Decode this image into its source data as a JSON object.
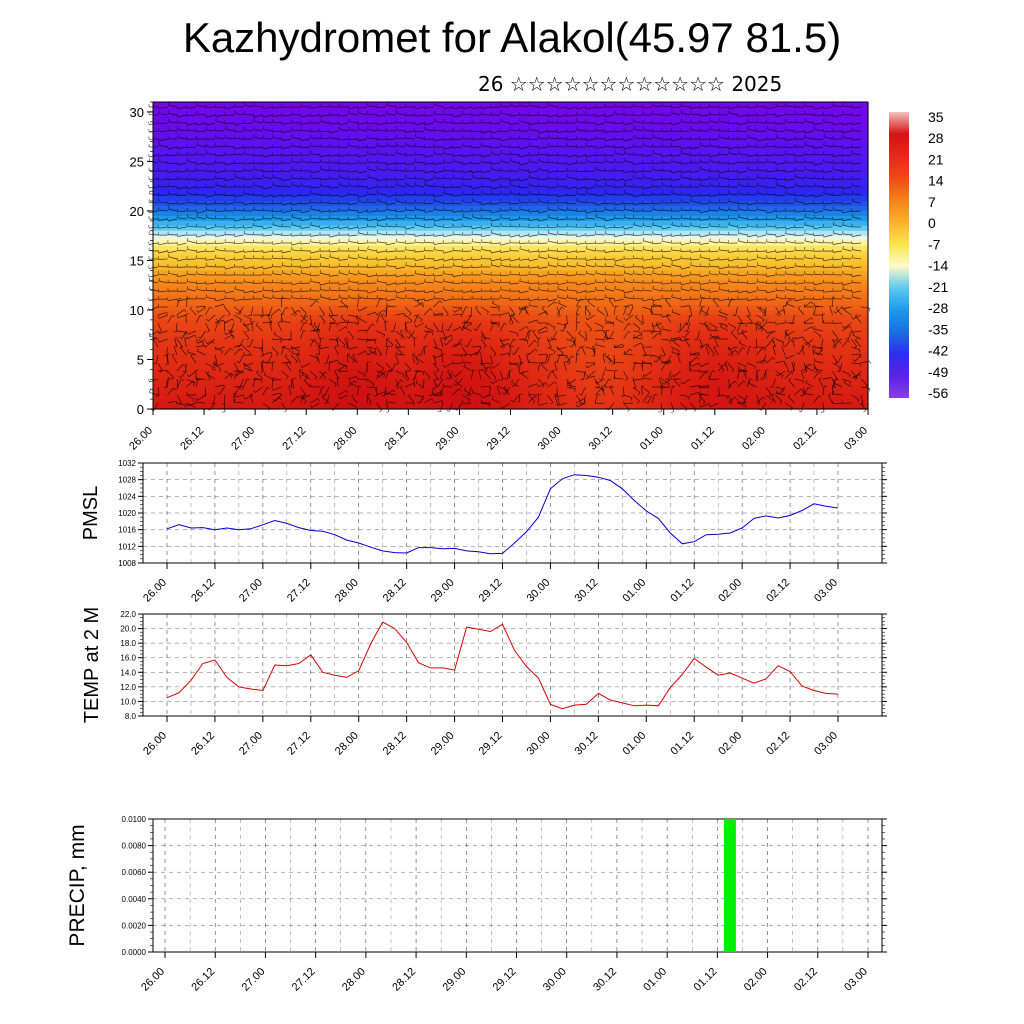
{
  "title": "Kazhydromet for Alakol(45.97 81.5)",
  "subtitle": "26 ☆☆☆☆☆☆☆☆☆☆☆☆ 2025",
  "time_labels": [
    "26.00",
    "26.12",
    "27.00",
    "27.12",
    "28.00",
    "28.12",
    "29.00",
    "29.12",
    "30.00",
    "30.12",
    "01.00",
    "01.12",
    "02.00",
    "02.12",
    "03.00"
  ],
  "colorbar": {
    "labels": [
      "35",
      "28",
      "21",
      "14",
      "7",
      "0",
      "-7",
      "-14",
      "-21",
      "-28",
      "-35",
      "-42",
      "-49",
      "-56"
    ],
    "colors": [
      "#f4c0c0",
      "#d21414",
      "#e6281a",
      "#f04a16",
      "#f5821c",
      "#f9b12a",
      "#fbe44a",
      "#fdfac8",
      "#5ec8f0",
      "#1c9ae8",
      "#1b6fe0",
      "#2a2ef0",
      "#5a22e6",
      "#8a3ce6"
    ]
  },
  "chart_data": [
    {
      "type": "heatmap",
      "title": "",
      "xlabel": "",
      "ylabel": "",
      "x_tick_labels": [
        "26.00",
        "26.12",
        "27.00",
        "27.12",
        "28.00",
        "28.12",
        "29.00",
        "29.12",
        "30.00",
        "30.12",
        "01.00",
        "01.12",
        "02.00",
        "02.12",
        "03.00"
      ],
      "ylim": [
        0,
        31
      ],
      "y_ticks": [
        0,
        5,
        10,
        15,
        20,
        25,
        30
      ],
      "value_range": [
        -56,
        35
      ],
      "profile_levels": [
        0,
        3,
        6,
        9,
        11,
        13,
        14.5,
        16,
        17.5,
        19,
        20.5,
        22,
        24,
        26,
        28,
        31
      ],
      "profile_values": [
        30,
        27,
        24,
        21,
        16,
        11,
        5,
        0,
        -14,
        -28,
        -38,
        -46,
        -50,
        -52,
        -55,
        -58
      ],
      "warm_cores": [
        {
          "time": "28.00",
          "level": 3,
          "value": 33
        },
        {
          "time": "29.00",
          "level": 3,
          "value": 33
        },
        {
          "time": "01.12",
          "level": 3,
          "value": 31
        }
      ],
      "overlay": "wind barbs"
    },
    {
      "type": "line",
      "title": "",
      "xlabel": "",
      "ylabel": "PMSL",
      "ylim": [
        1008,
        1032
      ],
      "y_ticks": [
        1008,
        1012,
        1016,
        1020,
        1024,
        1028,
        1032
      ],
      "x_tick_labels": [
        "26.00",
        "26.12",
        "27.00",
        "27.12",
        "28.00",
        "28.12",
        "29.00",
        "29.12",
        "30.00",
        "30.12",
        "01.00",
        "01.12",
        "02.00",
        "02.12",
        "03.00"
      ],
      "grid": true,
      "series": [
        {
          "color": "#0000dd",
          "x": [
            0,
            3,
            6,
            9,
            12,
            15,
            18,
            21,
            24,
            27,
            30,
            33,
            36,
            39,
            42,
            45,
            48,
            51,
            54,
            57,
            60,
            63,
            66,
            69,
            72,
            75,
            78,
            81,
            84,
            87,
            90,
            93,
            96,
            99,
            102,
            105,
            108,
            111,
            114,
            117,
            120,
            123,
            126,
            129,
            132,
            135,
            138,
            141,
            144,
            147,
            150,
            153,
            156,
            159,
            162,
            165,
            168
          ],
          "values": [
            1016.2,
            1017.2,
            1016.4,
            1016.5,
            1016.0,
            1016.4,
            1016.0,
            1016.2,
            1017.2,
            1018.2,
            1017.5,
            1016.5,
            1015.8,
            1015.6,
            1014.8,
            1013.5,
            1012.8,
            1011.8,
            1010.9,
            1010.5,
            1010.4,
            1011.7,
            1011.7,
            1011.4,
            1011.5,
            1010.9,
            1010.7,
            1010.2,
            1010.3,
            1012.8,
            1015.5,
            1019.0,
            1025.8,
            1028.2,
            1029.2,
            1029.0,
            1028.6,
            1027.8,
            1025.8,
            1023.0,
            1020.5,
            1018.7,
            1015.2,
            1012.6,
            1013.1,
            1014.8,
            1014.9,
            1015.2,
            1016.4,
            1018.7,
            1019.3,
            1018.8,
            1019.4,
            1020.6,
            1022.2,
            1021.6,
            1021.2
          ]
        }
      ]
    },
    {
      "type": "line",
      "title": "",
      "xlabel": "",
      "ylabel": "TEMP at 2 M",
      "ylim": [
        8,
        22
      ],
      "y_ticks": [
        8,
        10,
        12,
        14,
        16,
        18,
        20,
        22
      ],
      "x_tick_labels": [
        "26.00",
        "26.12",
        "27.00",
        "27.12",
        "28.00",
        "28.12",
        "29.00",
        "29.12",
        "30.00",
        "30.12",
        "01.00",
        "01.12",
        "02.00",
        "02.12",
        "03.00"
      ],
      "grid": true,
      "series": [
        {
          "color": "#dd0000",
          "x": [
            0,
            3,
            6,
            9,
            12,
            15,
            18,
            21,
            24,
            27,
            30,
            33,
            36,
            39,
            42,
            45,
            48,
            51,
            54,
            57,
            60,
            63,
            66,
            69,
            72,
            75,
            78,
            81,
            84,
            87,
            90,
            93,
            96,
            99,
            102,
            105,
            108,
            111,
            114,
            117,
            120,
            123,
            126,
            129,
            132,
            135,
            138,
            141,
            144,
            147,
            150,
            153,
            156,
            159,
            162,
            165,
            168
          ],
          "values": [
            10.5,
            11.2,
            12.9,
            15.2,
            15.7,
            13.3,
            12.0,
            11.7,
            11.5,
            15.0,
            14.9,
            15.2,
            16.4,
            14.0,
            13.6,
            13.3,
            14.2,
            17.9,
            20.9,
            20.0,
            18.1,
            15.3,
            14.6,
            14.6,
            14.3,
            20.2,
            19.9,
            19.6,
            20.6,
            17.0,
            14.8,
            13.2,
            9.6,
            9.0,
            9.5,
            9.6,
            11.1,
            10.2,
            9.8,
            9.4,
            9.5,
            9.4,
            11.9,
            13.7,
            15.9,
            14.7,
            13.6,
            13.9,
            13.2,
            12.5,
            13.1,
            14.9,
            14.1,
            12.1,
            11.5,
            11.1,
            11.0
          ]
        }
      ]
    },
    {
      "type": "bar",
      "title": "",
      "xlabel": "",
      "ylabel": "PRECIP, mm",
      "ylim": [
        0,
        0.01
      ],
      "y_tick_labels": [
        "0.0000",
        "0.0020",
        "0.0040",
        "0.0060",
        "0.0080",
        "0.0100"
      ],
      "x_tick_labels": [
        "26.00",
        "26.12",
        "27.00",
        "27.12",
        "28.00",
        "28.12",
        "29.00",
        "29.12",
        "30.00",
        "30.12",
        "01.00",
        "01.12",
        "02.00",
        "02.12",
        "03.00"
      ],
      "grid": true,
      "bar_color": "#00ee00",
      "bars": [
        {
          "x": 135,
          "value": 0.01
        }
      ]
    }
  ]
}
